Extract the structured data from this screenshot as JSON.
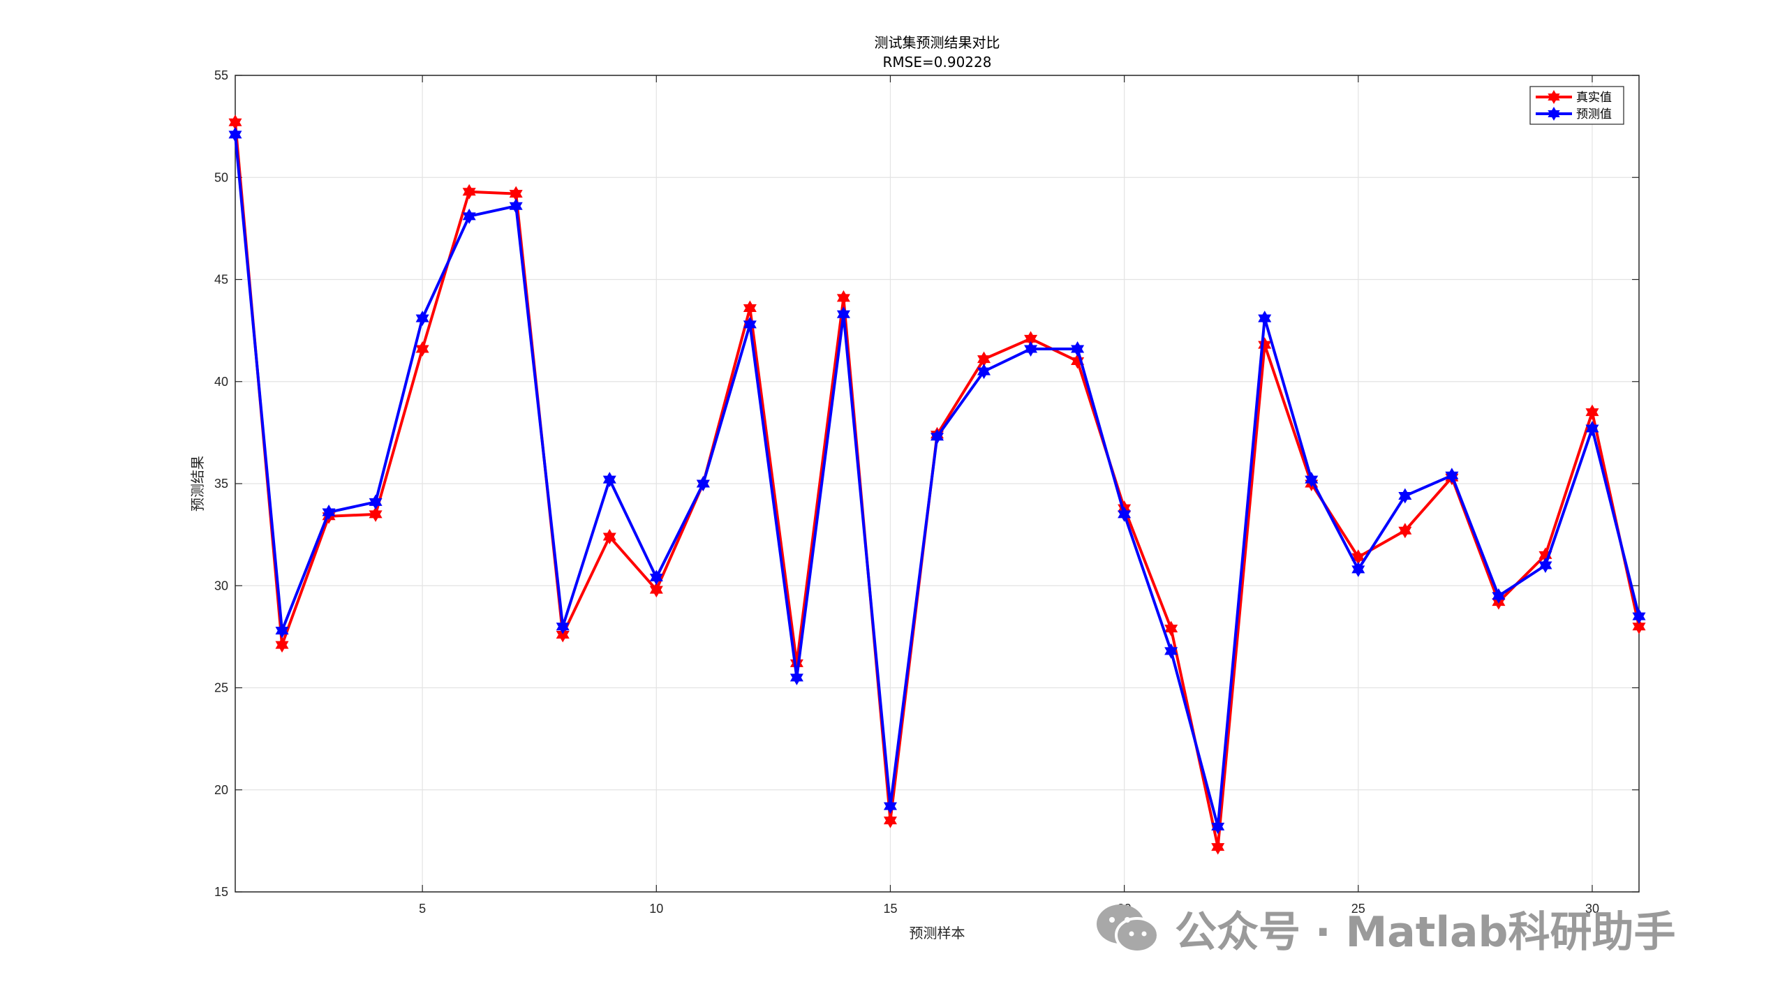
{
  "chart_data": {
    "type": "line",
    "title": "测试集预测结果对比",
    "subtitle": "RMSE=0.90228",
    "xlabel": "预测样本",
    "ylabel": "预测结果",
    "xlim": [
      1,
      31
    ],
    "ylim": [
      15,
      55
    ],
    "xticks": [
      5,
      10,
      15,
      20,
      25,
      30
    ],
    "yticks": [
      15,
      20,
      25,
      30,
      35,
      40,
      45,
      50,
      55
    ],
    "grid": true,
    "legend_position": "top-right",
    "x": [
      1,
      2,
      3,
      4,
      5,
      6,
      7,
      8,
      9,
      10,
      11,
      12,
      13,
      14,
      15,
      16,
      17,
      18,
      19,
      20,
      21,
      22,
      23,
      24,
      25,
      26,
      27,
      28,
      29,
      30,
      31
    ],
    "series": [
      {
        "name": "真实值",
        "color": "#ff0000",
        "marker": "hexagram",
        "values": [
          52.7,
          27.1,
          33.4,
          33.5,
          41.6,
          49.3,
          49.2,
          27.6,
          32.4,
          29.8,
          35.0,
          43.6,
          26.2,
          44.1,
          18.5,
          37.4,
          41.1,
          42.1,
          41.0,
          33.8,
          27.9,
          17.2,
          41.8,
          35.0,
          31.4,
          32.7,
          35.3,
          29.2,
          31.5,
          38.5,
          28.0
        ]
      },
      {
        "name": "预测值",
        "color": "#0000ff",
        "marker": "hexagram",
        "values": [
          52.1,
          27.8,
          33.6,
          34.1,
          43.1,
          48.1,
          48.6,
          28.0,
          35.2,
          30.4,
          35.0,
          42.8,
          25.5,
          43.3,
          19.2,
          37.3,
          40.5,
          41.6,
          41.6,
          33.5,
          26.8,
          18.2,
          43.1,
          35.2,
          30.8,
          34.4,
          35.4,
          29.5,
          31.0,
          37.7,
          28.5
        ]
      }
    ]
  },
  "watermark": {
    "text": "公众号 · Matlab科研助手",
    "icon": "wechat-icon"
  }
}
